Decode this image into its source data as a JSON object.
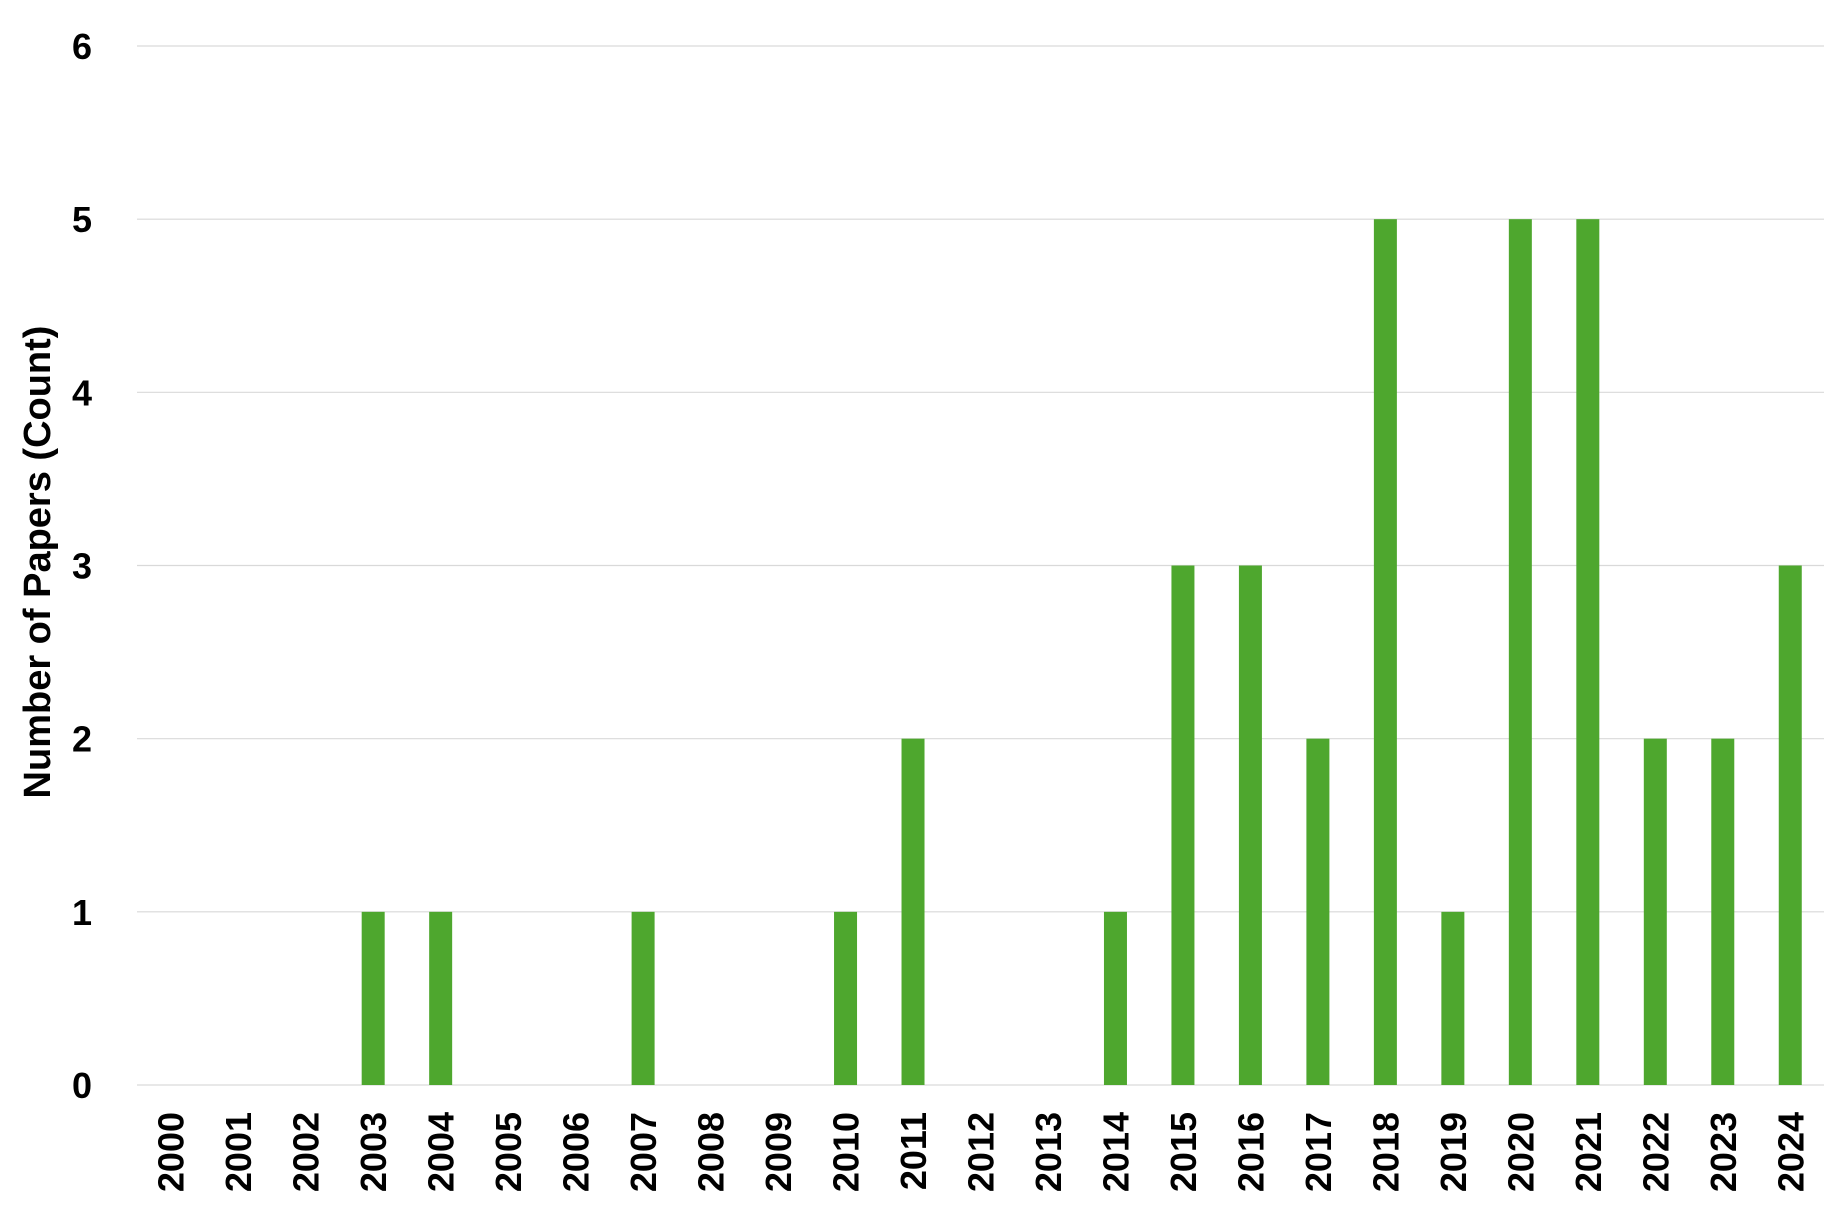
{
  "chart_data": {
    "type": "bar",
    "title": "",
    "xlabel": "",
    "ylabel": "Number of Papers (Count)",
    "ylim": [
      0,
      6
    ],
    "yticks": [
      "0",
      "1",
      "2",
      "3",
      "4",
      "5",
      "6"
    ],
    "grid": true,
    "legend": "none",
    "categories": [
      "2000",
      "2001",
      "2002",
      "2003",
      "2004",
      "2005",
      "2006",
      "2007",
      "2008",
      "2009",
      "2010",
      "2011",
      "2012",
      "2013",
      "2014",
      "2015",
      "2016",
      "2017",
      "2018",
      "2019",
      "2020",
      "2021",
      "2022",
      "2023",
      "2024"
    ],
    "values": [
      0,
      0,
      0,
      1,
      1,
      0,
      0,
      1,
      0,
      0,
      1,
      2,
      0,
      0,
      1,
      3,
      3,
      2,
      5,
      1,
      5,
      5,
      2,
      2,
      3
    ],
    "bar_color": "#4ea72e",
    "grid_color": "#d9d9d9"
  }
}
